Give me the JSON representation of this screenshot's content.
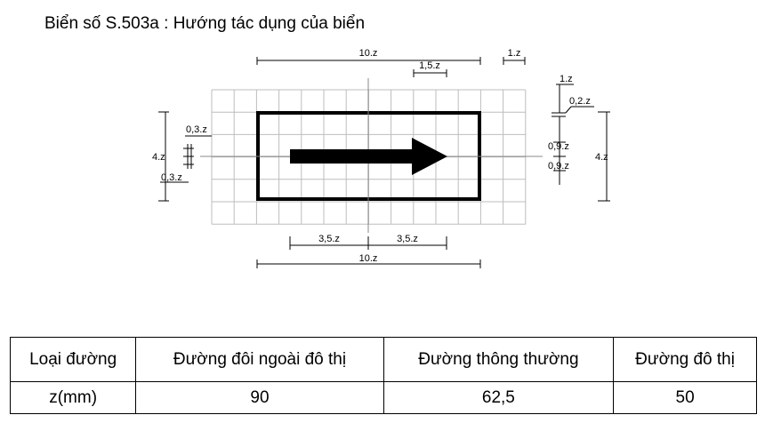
{
  "title": "Biển số S.503a : Hướng tác dụng của biển",
  "dims": {
    "top_width": "10.z",
    "top_gap": "1.z",
    "top_cell": "1,5.z",
    "left_height": "4.z",
    "left_top": "0,3.z",
    "left_bottom": "0,3.z",
    "right_top": "1.z",
    "right_border": "0,2.z",
    "right_mid_a": "0,9.z",
    "right_mid_b": "0,9.z",
    "right_height": "4.z",
    "bottom_left": "3,5.z",
    "bottom_right": "3,5.z",
    "bottom_width": "10.z"
  },
  "table": {
    "headers": [
      "Loại đường",
      "Đường đôi ngoài đô thị",
      "Đường thông thường",
      "Đường đô thị"
    ],
    "rows": [
      [
        "z(mm)",
        "90",
        "62,5",
        "50"
      ]
    ]
  }
}
